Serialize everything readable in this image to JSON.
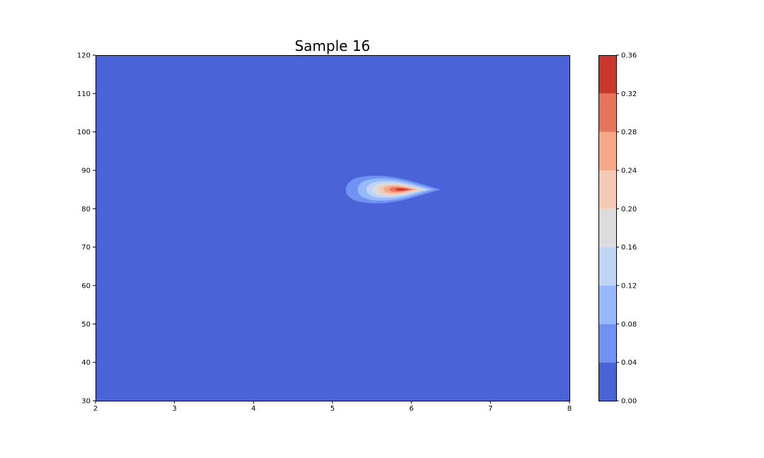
{
  "chart_data": {
    "type": "heatmap",
    "subtype": "filled-contour",
    "title": "Sample 16",
    "xlabel": "",
    "ylabel": "",
    "xlim": [
      2,
      8
    ],
    "ylim": [
      30,
      120
    ],
    "x_ticks": [
      "2",
      "3",
      "4",
      "5",
      "6",
      "7",
      "8"
    ],
    "y_ticks": [
      "30",
      "40",
      "50",
      "60",
      "70",
      "80",
      "90",
      "100",
      "110",
      "120"
    ],
    "grid": false,
    "peak": {
      "x": 5.9,
      "y": 85,
      "value": 0.36
    },
    "colorbar": {
      "levels": [
        0.0,
        0.04,
        0.08,
        0.12,
        0.16,
        0.2,
        0.24,
        0.28,
        0.32,
        0.36
      ],
      "tick_labels": [
        "0.00",
        "0.04",
        "0.08",
        "0.12",
        "0.16",
        "0.20",
        "0.24",
        "0.28",
        "0.32",
        "0.36"
      ],
      "colors": [
        "#4a64d8",
        "#6f92f3",
        "#98b9fe",
        "#c0d4f5",
        "#dddcdc",
        "#f2cab5",
        "#f7a889",
        "#e7745b",
        "#c9372d"
      ]
    },
    "contours": [
      {
        "level_min": 0.04,
        "x_range": [
          5.17,
          6.37
        ],
        "y_range": [
          81.4,
          88.6
        ]
      },
      {
        "level_min": 0.08,
        "x_range": [
          5.32,
          6.28
        ],
        "y_range": [
          82.1,
          87.9
        ]
      },
      {
        "level_min": 0.12,
        "x_range": [
          5.43,
          6.22
        ],
        "y_range": [
          82.8,
          87.2
        ]
      },
      {
        "level_min": 0.16,
        "x_range": [
          5.51,
          6.16
        ],
        "y_range": [
          83.3,
          86.7
        ]
      },
      {
        "level_min": 0.2,
        "x_range": [
          5.58,
          6.11
        ],
        "y_range": [
          83.7,
          86.3
        ]
      },
      {
        "level_min": 0.24,
        "x_range": [
          5.65,
          6.06
        ],
        "y_range": [
          84.0,
          86.0
        ]
      },
      {
        "level_min": 0.28,
        "x_range": [
          5.72,
          6.02
        ],
        "y_range": [
          84.4,
          85.6
        ]
      },
      {
        "level_min": 0.32,
        "x_range": [
          5.8,
          5.97
        ],
        "y_range": [
          84.7,
          85.3
        ]
      }
    ]
  }
}
